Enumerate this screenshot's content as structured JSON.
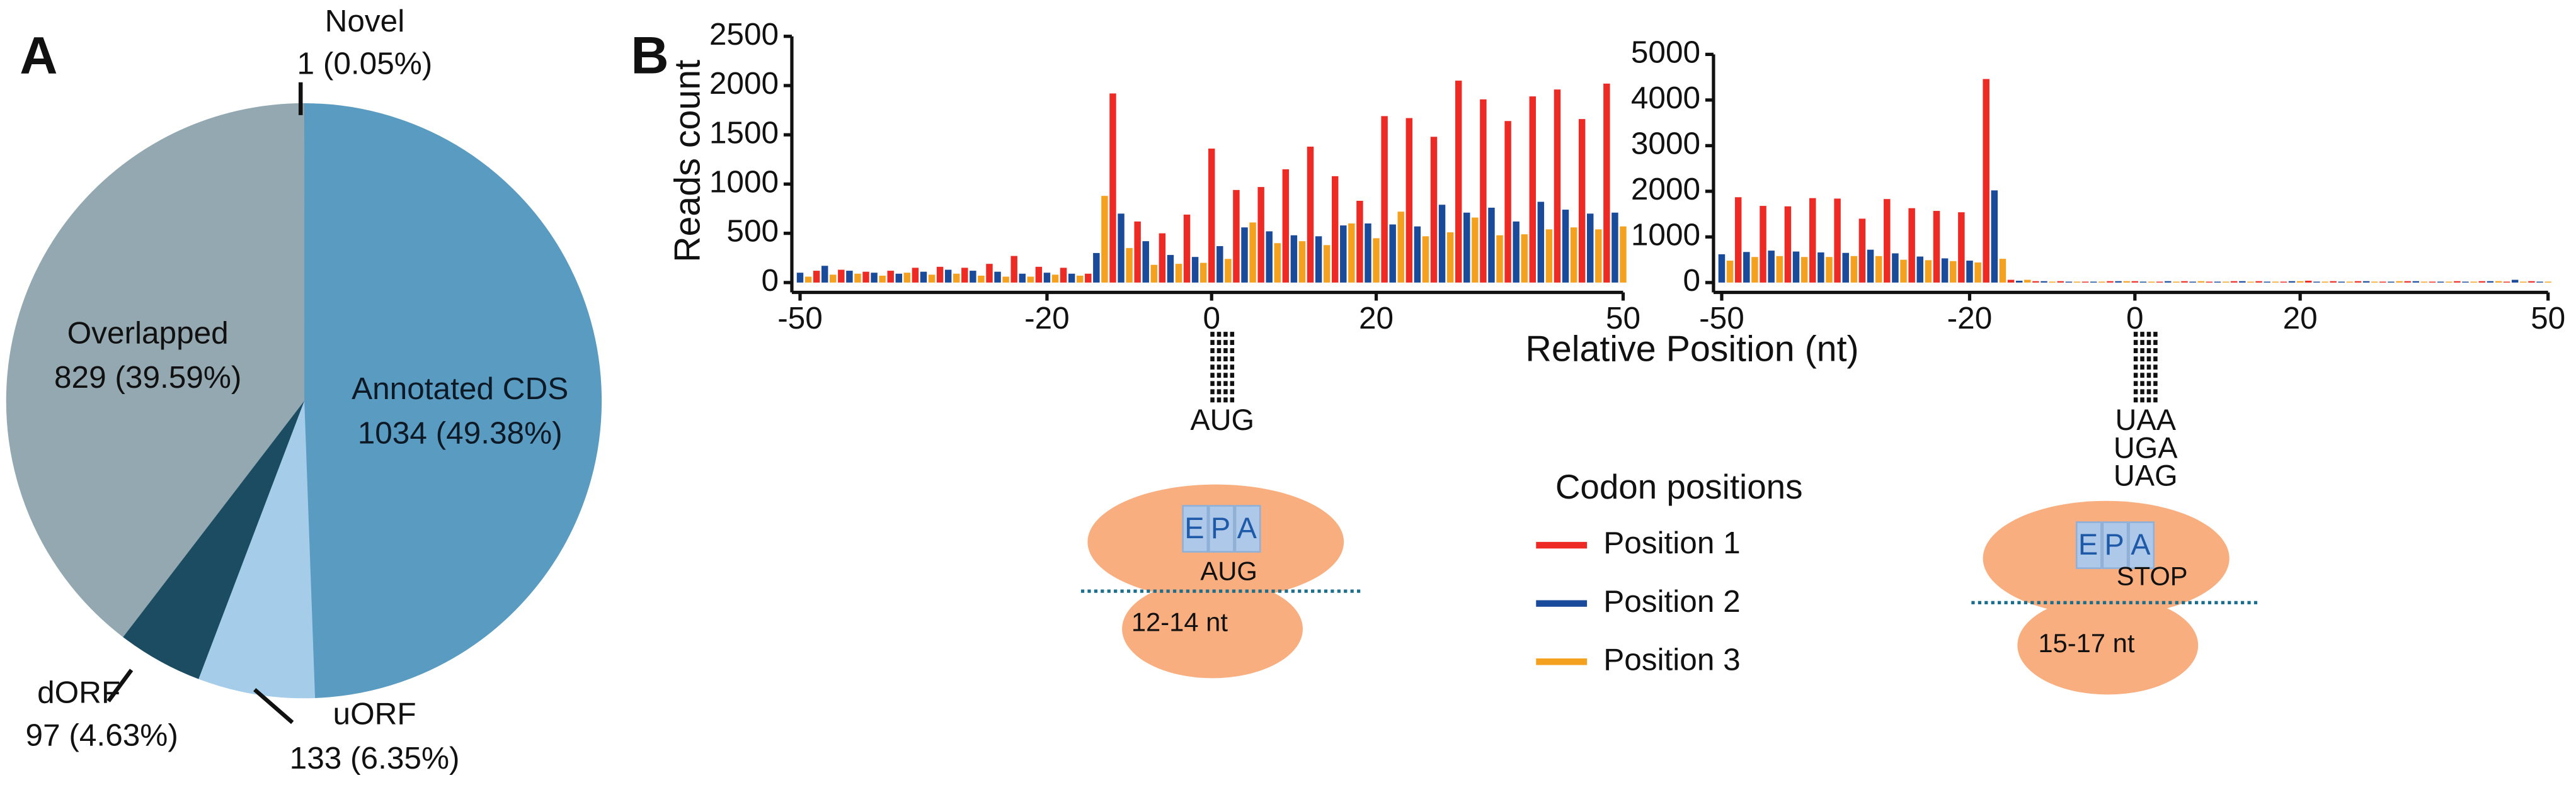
{
  "panel_labels": [
    "A",
    "B"
  ],
  "x_label": "Relative Position (nt)",
  "legend_title": "Codon positions",
  "start_codon": "AUG",
  "stop_codons": [
    "UAA",
    "UGA",
    "UAG"
  ],
  "ribosome_left": {
    "sites": [
      "E",
      "P",
      "A"
    ],
    "codon": "AUG",
    "length": "12-14 nt"
  },
  "ribosome_right": {
    "sites": [
      "E",
      "P",
      "A"
    ],
    "codon": "STOP",
    "length": "15-17 nt"
  },
  "chart_data": [
    {
      "type": "pie",
      "categories": [
        "Novel",
        "Annotated CDS",
        "uORF",
        "dORF",
        "Overlapped"
      ],
      "values": [
        1,
        1034,
        133,
        97,
        829
      ],
      "value_labels": [
        "1 (0.05%)",
        "1034 (49.38%)",
        "133 (6.35%)",
        "97 (4.63%)",
        "829 (39.59%)"
      ],
      "colors": [
        "#3c5f6e",
        "#5a9bc1",
        "#a5cde9",
        "#1b4c62",
        "#93a8b0"
      ]
    },
    {
      "type": "bar",
      "ylabel": "Reads count",
      "xlim": [
        -50,
        50
      ],
      "xticks": [
        -50,
        -20,
        0,
        20,
        50
      ],
      "ylim": [
        0,
        2500
      ],
      "yticks": [
        0,
        500,
        1000,
        1500,
        2000,
        2500
      ],
      "series": [
        {
          "name": "Position 1",
          "color": "#ee2a24",
          "x": [
            -48,
            -45,
            -42,
            -39,
            -36,
            -33,
            -30,
            -27,
            -24,
            -21,
            -18,
            -15,
            -12,
            -9,
            -6,
            -3,
            0,
            3,
            6,
            9,
            12,
            15,
            18,
            21,
            24,
            27,
            30,
            33,
            36,
            39,
            42,
            45,
            48
          ],
          "values": [
            120,
            130,
            110,
            120,
            150,
            160,
            150,
            190,
            270,
            160,
            150,
            90,
            1920,
            620,
            500,
            690,
            1360,
            940,
            970,
            1150,
            1380,
            1080,
            830,
            1690,
            1670,
            1480,
            2050,
            1860,
            1640,
            1890,
            1960,
            1660,
            2020
          ]
        },
        {
          "name": "Position 2",
          "color": "#1a4a9a",
          "x": [
            -50,
            -47,
            -44,
            -41,
            -38,
            -35,
            -32,
            -29,
            -26,
            -23,
            -20,
            -17,
            -14,
            -11,
            -8,
            -5,
            -2,
            1,
            4,
            7,
            10,
            13,
            16,
            19,
            22,
            25,
            28,
            31,
            34,
            37,
            40,
            43,
            46,
            49
          ],
          "values": [
            100,
            170,
            120,
            100,
            90,
            110,
            130,
            120,
            110,
            90,
            100,
            90,
            300,
            700,
            420,
            280,
            260,
            370,
            560,
            520,
            480,
            470,
            580,
            600,
            590,
            570,
            790,
            710,
            760,
            620,
            820,
            740,
            700,
            710
          ]
        },
        {
          "name": "Position 3",
          "color": "#f4a11f",
          "x": [
            -49,
            -46,
            -43,
            -40,
            -37,
            -34,
            -31,
            -28,
            -25,
            -22,
            -19,
            -16,
            -13,
            -10,
            -7,
            -4,
            -1,
            2,
            5,
            8,
            11,
            14,
            17,
            20,
            23,
            26,
            29,
            32,
            35,
            38,
            41,
            44,
            47,
            50
          ],
          "values": [
            60,
            80,
            90,
            70,
            100,
            80,
            90,
            70,
            60,
            60,
            80,
            70,
            880,
            350,
            180,
            190,
            200,
            240,
            610,
            400,
            420,
            380,
            600,
            450,
            720,
            470,
            510,
            660,
            480,
            490,
            540,
            560,
            540,
            570
          ]
        }
      ]
    },
    {
      "type": "bar",
      "xlim": [
        -50,
        50
      ],
      "xticks": [
        -50,
        -20,
        0,
        20,
        50
      ],
      "ylim": [
        0,
        5000
      ],
      "yticks": [
        0,
        1000,
        2000,
        3000,
        4000,
        5000
      ],
      "series": [
        {
          "name": "Position 1",
          "color": "#ee2a24",
          "x": [
            -48,
            -45,
            -42,
            -39,
            -36,
            -33,
            -30,
            -27,
            -24,
            -21,
            -18,
            -15,
            -12,
            -9,
            -6,
            -3,
            0,
            3,
            6,
            9,
            12,
            15,
            18,
            21,
            24,
            27,
            30,
            33,
            36,
            39,
            42,
            45,
            48
          ],
          "values": [
            1870,
            1680,
            1670,
            1850,
            1840,
            1400,
            1830,
            1630,
            1570,
            1540,
            4460,
            60,
            30,
            30,
            20,
            30,
            30,
            20,
            30,
            20,
            30,
            30,
            20,
            40,
            30,
            30,
            20,
            30,
            20,
            30,
            30,
            20,
            30
          ]
        },
        {
          "name": "Position 2",
          "color": "#1a4a9a",
          "x": [
            -50,
            -47,
            -44,
            -41,
            -38,
            -35,
            -32,
            -29,
            -26,
            -23,
            -20,
            -17,
            -14,
            -11,
            -8,
            -5,
            -2,
            1,
            4,
            7,
            10,
            13,
            16,
            19,
            22,
            25,
            28,
            31,
            34,
            37,
            40,
            43,
            46,
            49
          ],
          "values": [
            620,
            670,
            700,
            680,
            660,
            650,
            720,
            640,
            570,
            530,
            480,
            2020,
            40,
            30,
            20,
            20,
            30,
            20,
            30,
            20,
            20,
            30,
            20,
            30,
            20,
            20,
            30,
            20,
            30,
            20,
            20,
            30,
            60,
            20
          ]
        },
        {
          "name": "Position 3",
          "color": "#f4a11f",
          "x": [
            -49,
            -46,
            -43,
            -40,
            -37,
            -34,
            -31,
            -28,
            -25,
            -22,
            -19,
            -16,
            -13,
            -10,
            -7,
            -4,
            -1,
            2,
            5,
            8,
            11,
            14,
            17,
            20,
            23,
            26,
            29,
            32,
            35,
            38,
            41,
            44,
            47,
            50
          ],
          "values": [
            480,
            560,
            580,
            560,
            560,
            580,
            580,
            500,
            490,
            470,
            440,
            520,
            60,
            20,
            20,
            20,
            30,
            20,
            20,
            30,
            20,
            20,
            20,
            30,
            20,
            20,
            20,
            30,
            20,
            20,
            20,
            30,
            20,
            20
          ]
        }
      ]
    }
  ]
}
